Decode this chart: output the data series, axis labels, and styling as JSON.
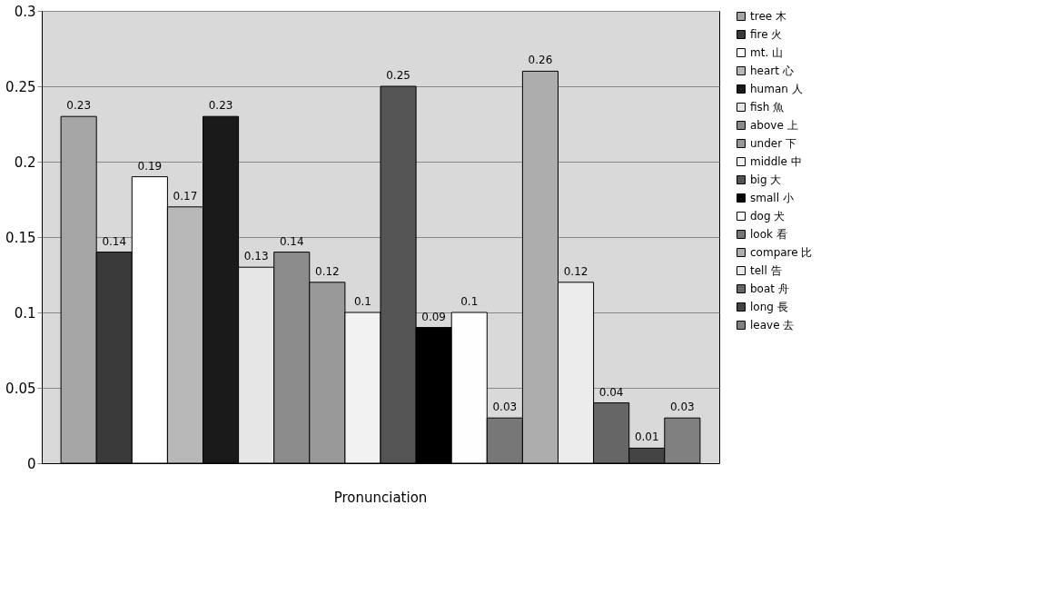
{
  "chart_data": {
    "type": "bar",
    "categories": [
      "Pronunciation"
    ],
    "series": [
      {
        "name": "tree 木",
        "color": "#a6a6a6",
        "values": [
          0.23
        ]
      },
      {
        "name": "fire 火",
        "color": "#3a3a3a",
        "values": [
          0.14
        ]
      },
      {
        "name": "mt. 山",
        "color": "#ffffff",
        "values": [
          0.19
        ]
      },
      {
        "name": "heart 心",
        "color": "#b8b8b8",
        "values": [
          0.17
        ]
      },
      {
        "name": "human 人",
        "color": "#1a1a1a",
        "values": [
          0.23
        ]
      },
      {
        "name": "fish 魚",
        "color": "#e6e6e6",
        "values": [
          0.13
        ]
      },
      {
        "name": "above 上",
        "color": "#8c8c8c",
        "values": [
          0.14
        ]
      },
      {
        "name": "under 下",
        "color": "#999999",
        "values": [
          0.12
        ]
      },
      {
        "name": "middle 中",
        "color": "#f2f2f2",
        "values": [
          0.1
        ]
      },
      {
        "name": "big 大",
        "color": "#555555",
        "values": [
          0.25
        ]
      },
      {
        "name": "small 小",
        "color": "#000000",
        "values": [
          0.09
        ]
      },
      {
        "name": "dog 犬",
        "color": "#fefefe",
        "values": [
          0.1
        ]
      },
      {
        "name": "look 看",
        "color": "#777777",
        "values": [
          0.03
        ]
      },
      {
        "name": "compare 比",
        "color": "#adadad",
        "values": [
          0.26
        ]
      },
      {
        "name": "tell 告",
        "color": "#ececec",
        "values": [
          0.12
        ]
      },
      {
        "name": "boat 舟",
        "color": "#666666",
        "values": [
          0.04
        ]
      },
      {
        "name": "long 長",
        "color": "#444444",
        "values": [
          0.01
        ]
      },
      {
        "name": "leave 去",
        "color": "#808080",
        "values": [
          0.03
        ]
      }
    ],
    "ylim": [
      0,
      0.3
    ],
    "yticks": [
      0,
      0.05,
      0.1,
      0.15,
      0.2,
      0.25,
      0.3
    ],
    "grid": "y",
    "legend": "right",
    "data_labels": true
  }
}
